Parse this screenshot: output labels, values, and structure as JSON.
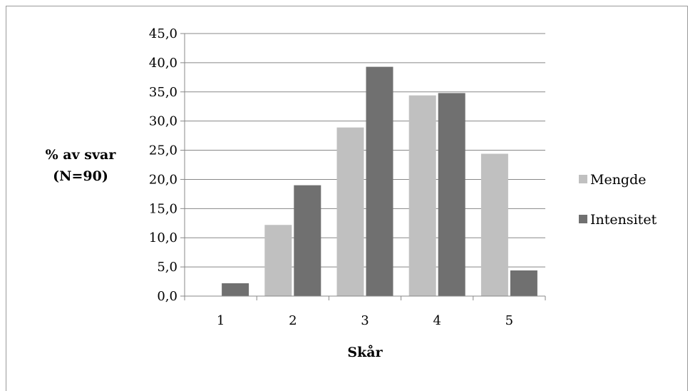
{
  "chart_data": {
    "type": "bar",
    "categories": [
      "1",
      "2",
      "3",
      "4",
      "5"
    ],
    "series": [
      {
        "name": "Mengde",
        "values": [
          0.0,
          12.2,
          28.9,
          34.4,
          24.4
        ],
        "color": "#c0c0c0"
      },
      {
        "name": "Intensitet",
        "values": [
          2.2,
          19.0,
          39.3,
          34.8,
          4.4
        ],
        "color": "#707070"
      }
    ],
    "title": "",
    "xlabel": "Skår",
    "ylabel_lines": [
      "% av svar",
      "(N=90)"
    ],
    "ylim": [
      0,
      45
    ],
    "ytick_step": 5,
    "ytick_format": "comma-1-decimal",
    "grid": true,
    "legend_position": "right"
  }
}
